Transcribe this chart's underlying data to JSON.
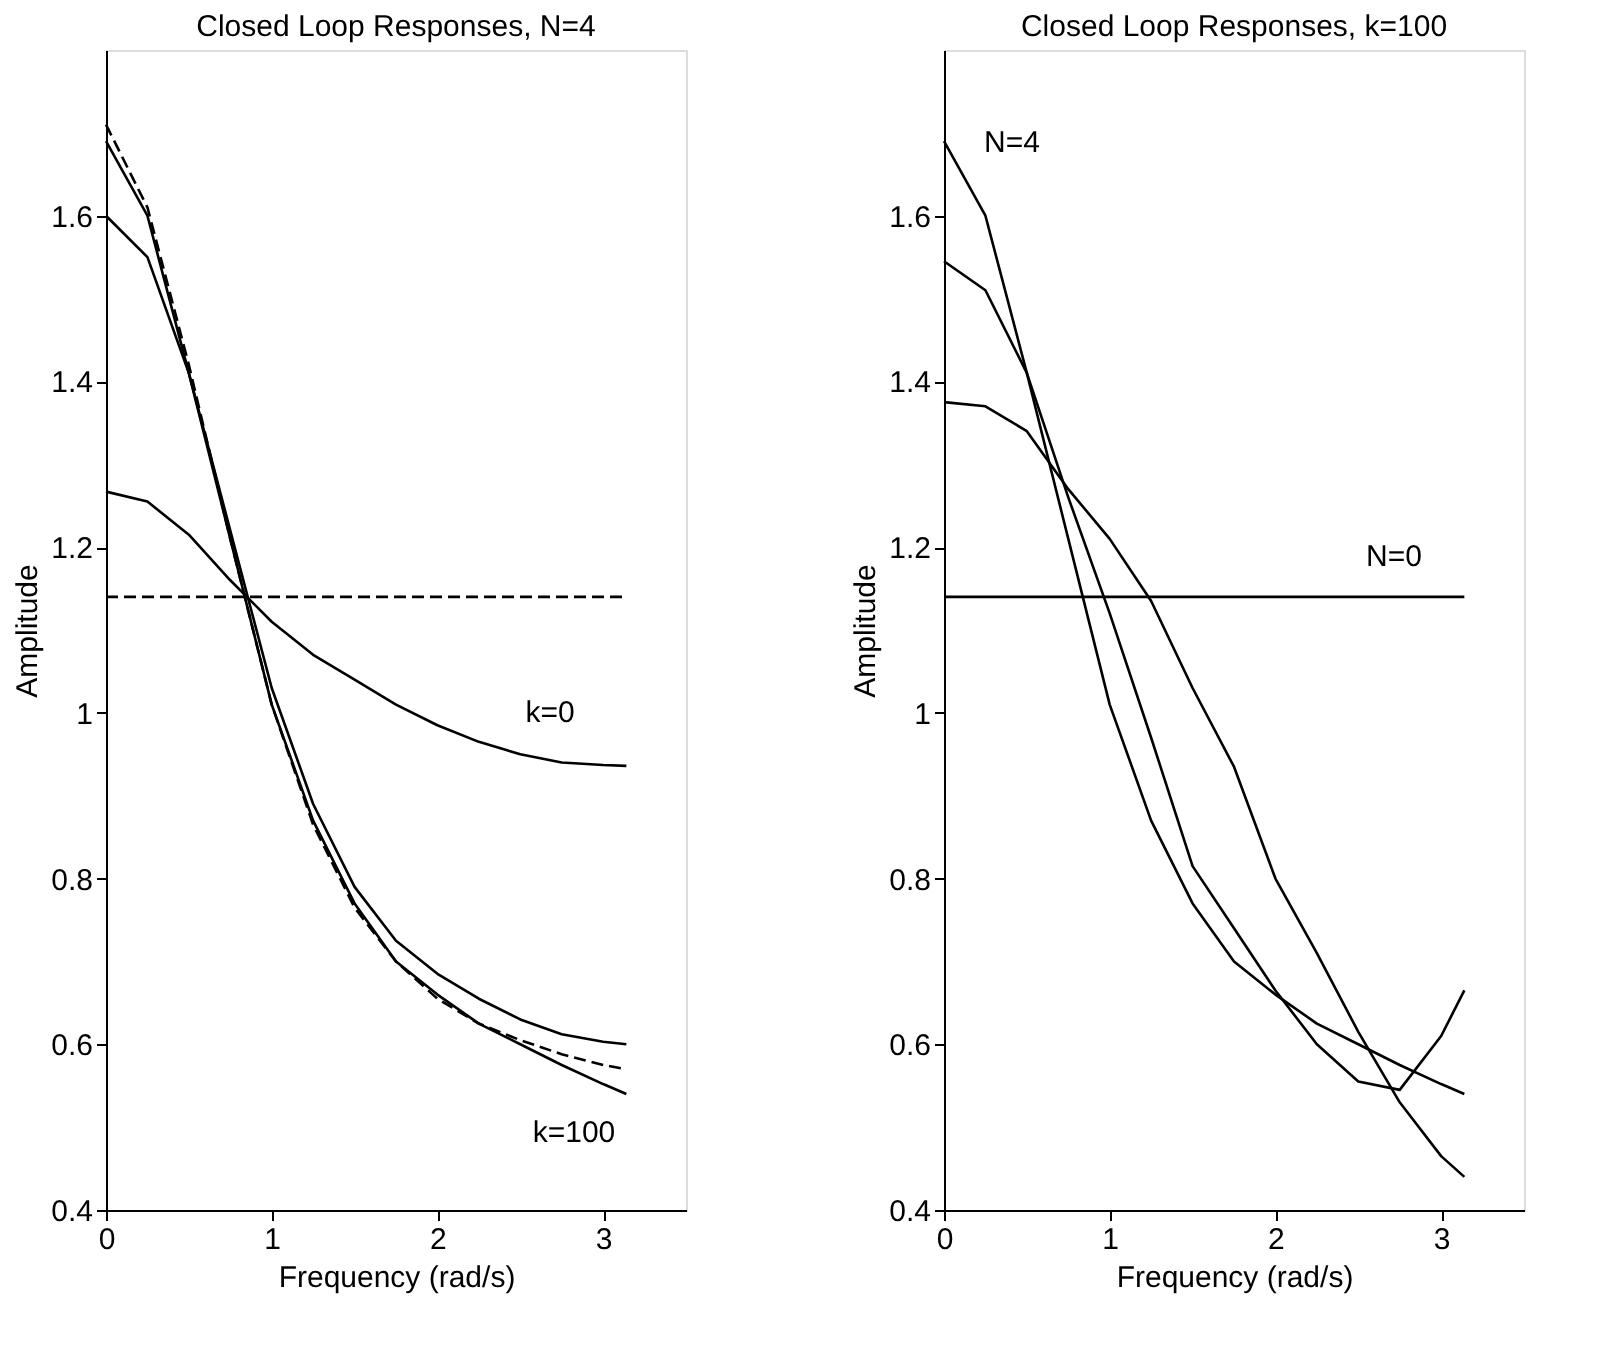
{
  "chart_data": [
    {
      "type": "line",
      "title": "Closed Loop Responses, N=4",
      "xlabel": "Frequency (rad/s)",
      "ylabel": "Amplitude",
      "xlim": [
        0,
        3.5
      ],
      "ylim": [
        0.4,
        1.8
      ],
      "xticks": [
        0,
        1,
        2,
        3
      ],
      "yticks": [
        0.4,
        0.6,
        0.8,
        1,
        1.2,
        1.4,
        1.6
      ],
      "grid": false,
      "marker": "none",
      "x": [
        0,
        0.25,
        0.5,
        0.75,
        1,
        1.25,
        1.5,
        1.75,
        2,
        2.25,
        2.5,
        2.75,
        3,
        3.14
      ],
      "series": [
        {
          "color": "#000000",
          "line_style": "solid",
          "values": [
            1.267,
            1.255,
            1.215,
            1.16,
            1.11,
            1.07,
            1.04,
            1.01,
            0.985,
            0.965,
            0.95,
            0.94,
            0.937,
            0.936
          ]
        },
        {
          "color": "#000000",
          "line_style": "solid",
          "values": [
            1.6,
            1.55,
            1.41,
            1.22,
            1.03,
            0.89,
            0.79,
            0.725,
            0.685,
            0.655,
            0.63,
            0.612,
            0.603,
            0.6
          ]
        },
        {
          "color": "#000000",
          "line_style": "solid",
          "values": [
            1.69,
            1.6,
            1.41,
            1.21,
            1.01,
            0.87,
            0.77,
            0.7,
            0.66,
            0.625,
            0.6,
            0.575,
            0.552,
            0.54
          ]
        },
        {
          "color": "#000000",
          "line_style": "dashed",
          "values": [
            1.71,
            1.61,
            1.42,
            1.21,
            1.01,
            0.865,
            0.765,
            0.7,
            0.655,
            0.625,
            0.605,
            0.588,
            0.575,
            0.57
          ]
        },
        {
          "color": "#000000",
          "line_style": "dashed",
          "values": [
            1.14,
            1.14,
            1.14,
            1.14,
            1.14,
            1.14,
            1.14,
            1.14,
            1.14,
            1.14,
            1.14,
            1.14,
            1.14,
            1.14
          ]
        }
      ],
      "annotations": [
        "k=0",
        "k=100"
      ]
    },
    {
      "type": "line",
      "title": "Closed Loop Responses, k=100",
      "xlabel": "Frequency (rad/s)",
      "ylabel": "Amplitude",
      "xlim": [
        0,
        3.5
      ],
      "ylim": [
        0.4,
        1.8
      ],
      "xticks": [
        0,
        1,
        2,
        3
      ],
      "yticks": [
        0.4,
        0.6,
        0.8,
        1,
        1.2,
        1.4,
        1.6
      ],
      "grid": false,
      "marker": "none",
      "x": [
        0,
        0.25,
        0.5,
        0.75,
        1,
        1.25,
        1.5,
        1.75,
        2,
        2.25,
        2.5,
        2.75,
        3,
        3.14
      ],
      "series": [
        {
          "color": "#000000",
          "line_style": "solid",
          "values": [
            1.69,
            1.6,
            1.41,
            1.21,
            1.01,
            0.87,
            0.77,
            0.7,
            0.66,
            0.625,
            0.6,
            0.575,
            0.552,
            0.54
          ]
        },
        {
          "color": "#000000",
          "line_style": "solid",
          "values": [
            1.545,
            1.51,
            1.41,
            1.26,
            1.12,
            0.97,
            0.815,
            0.74,
            0.665,
            0.6,
            0.555,
            0.545,
            0.61,
            0.665
          ]
        },
        {
          "color": "#000000",
          "line_style": "solid",
          "values": [
            1.375,
            1.37,
            1.34,
            1.27,
            1.21,
            1.135,
            1.03,
            0.935,
            0.8,
            0.71,
            0.615,
            0.53,
            0.465,
            0.44
          ]
        },
        {
          "color": "#000000",
          "line_style": "solid",
          "values": [
            1.14,
            1.14,
            1.14,
            1.14,
            1.14,
            1.14,
            1.14,
            1.14,
            1.14,
            1.14,
            1.14,
            1.14,
            1.14,
            1.14
          ]
        }
      ],
      "annotations": [
        "N=4",
        "N=0"
      ]
    }
  ]
}
